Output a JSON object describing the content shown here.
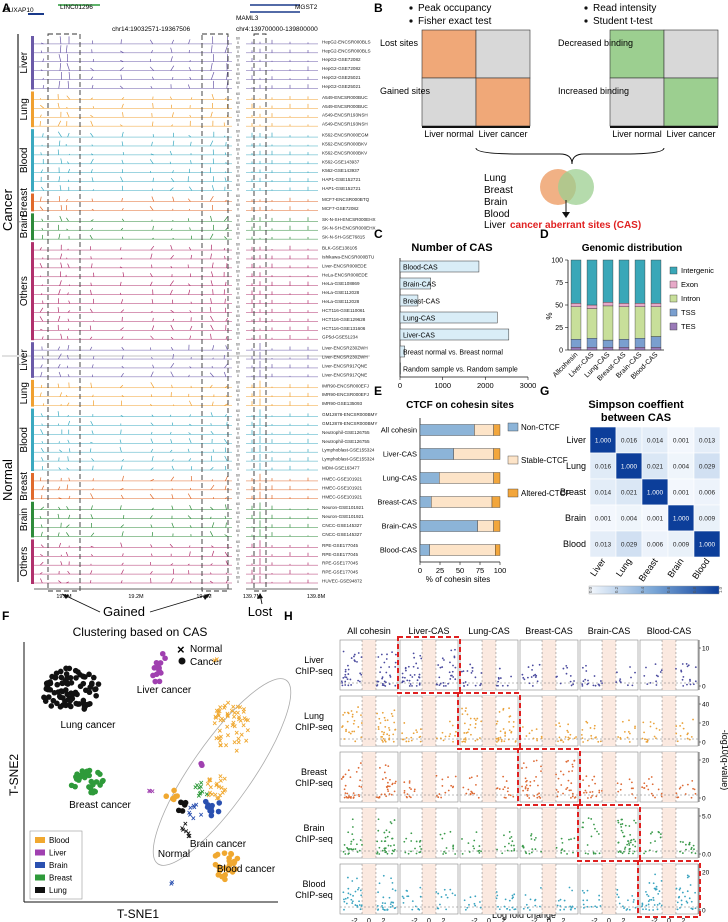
{
  "panel_labels": {
    "a": "A",
    "b": "B",
    "c": "C",
    "d": "D",
    "e": "E",
    "f": "F",
    "g": "G",
    "h": "H"
  },
  "panel_a": {
    "genes_top": [
      "DUXAP10",
      "LINC01296",
      "MGST2",
      "MAML3"
    ],
    "region1": "chr14:19032571-19367506",
    "region2": "chr4:139700000-139800000",
    "group_cancer": "Cancer",
    "group_normal": "Normal",
    "scale_max": "60",
    "scale_min": "0",
    "axis1_ticks": [
      "19.1M",
      "19.2M",
      "19.3M"
    ],
    "axis2_ticks": [
      "139.7M",
      "139.8M"
    ],
    "gained": "Gained",
    "lost": "Lost",
    "tissues": [
      {
        "name": "Liver",
        "color": "#6b5aa8",
        "group": "cancer",
        "tracks": [
          "HepG2-ENCSR000BLS",
          "HepG2-ENCSR000BLS",
          "HepG2-GSE72082",
          "HepG2-GSE72082",
          "HepG2-GSE25021",
          "HepG2-GSE25021"
        ]
      },
      {
        "name": "Lung",
        "color": "#f0a030",
        "group": "cancer",
        "tracks": [
          "A549-ENCSR000BUC",
          "A549-ENCSR000BUC",
          "A549-ENCSR193NSH",
          "A549-ENCSR193NSH"
        ]
      },
      {
        "name": "Blood",
        "color": "#3aa9c0",
        "group": "cancer",
        "tracks": [
          "K562-ENCSR000EGM",
          "K562-ENCSR000BKV",
          "K562-ENCSR000BKV",
          "K562-GSE143937",
          "K562-GSE143937",
          "HAP1-GSE152721",
          "HAP1-GSE152721"
        ]
      },
      {
        "name": "Breast",
        "color": "#e06a2c",
        "group": "cancer",
        "tracks": [
          "MCF7-ENCSR000BTQ",
          "MCF7-GSE72082"
        ]
      },
      {
        "name": "Brain",
        "color": "#2e8b3a",
        "group": "cancer",
        "tracks": [
          "SK-N-SH-ENCSR000EHX",
          "SK-N-SH-ENCSR000EHX",
          "SK-N-SH-GSE76815"
        ]
      },
      {
        "name": "Others",
        "color": "#b0306c",
        "group": "cancer",
        "tracks": [
          "BLK-GSE138105",
          "Ishikawa-ENCSR000BTU",
          "Liver-ENCSR000EDE",
          "HeLa-ENCSR000EDE",
          "HeLa-GSE108869",
          "HeLa-GSE112028",
          "HeLa-GSE112028",
          "HCT116-GSE110061",
          "HCT116-GSE129628",
          "HCT116-GSE131606",
          "GP5d-GSE51234"
        ]
      },
      {
        "name": "Liver",
        "color": "#6b5aa8",
        "group": "normal",
        "tracks": [
          "Liver-ENCSR230ZWH",
          "Liver-ENCSR230ZWH",
          "Liver-ENCSR917QNE",
          "Liver-ENCSR917QNE"
        ]
      },
      {
        "name": "Lung",
        "color": "#f0a030",
        "group": "normal",
        "tracks": [
          "IMR90-ENCSR000EFJ",
          "IMR90-ENCSR000EFJ",
          "IMR90-GSE135093"
        ]
      },
      {
        "name": "Blood",
        "color": "#3aa9c0",
        "group": "normal",
        "tracks": [
          "GM12878-ENCSR000BMY",
          "GM12878-ENCSR000BMY",
          "Neutrophil-GSE126755",
          "Neutrophil-GSE126755",
          "Lymphoblast-GSE155324",
          "Lymphoblast-GSE155324",
          "MDM-GSE163477"
        ]
      },
      {
        "name": "Breast",
        "color": "#e06a2c",
        "group": "normal",
        "tracks": [
          "HMEC-GSE101921",
          "HMEC-GSE101921",
          "HMEC-GSE101921"
        ]
      },
      {
        "name": "Brain",
        "color": "#2e8b3a",
        "group": "normal",
        "tracks": [
          "Neuron-GSE101921",
          "Neuron-GSE101921",
          "CNCC-GSE145327",
          "CNCC-GSE145327"
        ]
      },
      {
        "name": "Others",
        "color": "#b0306c",
        "group": "normal",
        "tracks": [
          "RPE-GSE177045",
          "RPE-GSE177045",
          "RPE-GSE177045",
          "RPE-GSE177045",
          "HUVEC-GSE94872"
        ]
      }
    ]
  },
  "panel_b": {
    "left_bullets": [
      "Peak occupancy",
      "Fisher exact test"
    ],
    "right_bullets": [
      "Read intensity",
      "Student t-test"
    ],
    "left_rows": [
      "Lost sites",
      "Gained sites"
    ],
    "right_rows": [
      "Decreased binding",
      "Increased binding"
    ],
    "cols": [
      "Liver normal",
      "Liver cancer"
    ],
    "tissue_list": [
      "Lung",
      "Breast",
      "Brain",
      "Blood",
      "Liver"
    ],
    "cas_label": "cancer aberrant sites (CAS)",
    "colors": {
      "orange": "#f0a878",
      "green": "#9ccf90",
      "grey": "#d8d8d8"
    }
  },
  "panel_c": {
    "title": "Number of CAS"
  },
  "panel_d": {
    "title": "Genomic distribution",
    "ylabel": "%",
    "legend": [
      "Intergenic",
      "Exon",
      "Intron",
      "TSS",
      "TES"
    ],
    "colors": [
      "#3aa7b8",
      "#e7a9c8",
      "#c8df9a",
      "#7a9fcf",
      "#9a7ab8"
    ]
  },
  "panel_e": {
    "title": "CTCF on cohesin sites",
    "xlabel": "% of cohesin sites",
    "legend": [
      "Non-CTCF",
      "Stable-CTCF",
      "Altered-CTCF"
    ],
    "colors": [
      "#8cb4d8",
      "#fde4c8",
      "#f2a63c"
    ]
  },
  "panel_f": {
    "title": "Clustering based on CAS",
    "xlabel": "T-SNE1",
    "ylabel": "T-SNE2",
    "key_normal": "Normal",
    "key_cancer": "Cancer",
    "cluster_labels": [
      "Lung cancer",
      "Liver cancer",
      "Breast cancer",
      "Normal",
      "Brain cancer",
      "Blood cancer"
    ],
    "legend": [
      {
        "name": "Blood",
        "color": "#f0a830"
      },
      {
        "name": "Liver",
        "color": "#a040b0"
      },
      {
        "name": "Brain",
        "color": "#2a50b0"
      },
      {
        "name": "Breast",
        "color": "#2e9a3a"
      },
      {
        "name": "Lung",
        "color": "#111111"
      }
    ]
  },
  "panel_g": {
    "title_line1": "Simpson coeffient",
    "title_line2": "between CAS",
    "colorbar_ticks": [
      "0.0",
      "0.2",
      "0.4",
      "0.6",
      "0.8",
      "1.0"
    ]
  },
  "panel_h": {
    "cols": [
      "All cohesin",
      "Liver-CAS",
      "Lung-CAS",
      "Breast-CAS",
      "Brain-CAS",
      "Blood-CAS"
    ],
    "rows": [
      {
        "line1": "Liver",
        "line2": "ChIP-seq",
        "color": "#4a4a9e",
        "ticks": [
          "10",
          "0"
        ]
      },
      {
        "line1": "Lung",
        "line2": "ChIP-seq",
        "color": "#eaa23a",
        "ticks": [
          "40",
          "20",
          "0"
        ]
      },
      {
        "line1": "Breast",
        "line2": "ChIP-seq",
        "color": "#de6a34",
        "ticks": [
          "20",
          "0"
        ]
      },
      {
        "line1": "Brain",
        "line2": "ChIP-seq",
        "color": "#3a9a4a",
        "ticks": [
          "5.0",
          "0.0"
        ]
      },
      {
        "line1": "Blood",
        "line2": "ChIP-seq",
        "color": "#3aa4c0",
        "ticks": [
          "20",
          "0"
        ]
      }
    ],
    "xticks": [
      "-2",
      "0",
      "2"
    ],
    "xlabel": "Log fold change",
    "ylabel": "-log10(q-value)"
  },
  "chart_data": [
    {
      "type": "bar",
      "panel": "C",
      "title": "Number of CAS",
      "orientation": "horizontal",
      "categories": [
        "Blood-CAS",
        "Brain-CAS",
        "Breast-CAS",
        "Lung-CAS",
        "Liver-CAS",
        "Breast normal vs. Breast normal",
        "Random sample vs. Random sample"
      ],
      "values": [
        1850,
        720,
        420,
        2280,
        2550,
        110,
        15
      ],
      "xticks": [
        "0",
        "1000",
        "2000",
        "3000"
      ],
      "xlim": [
        0,
        3000
      ]
    },
    {
      "type": "bar",
      "panel": "D",
      "stacked": true,
      "title": "Genomic distribution",
      "ylabel": "%",
      "categories": [
        "Allcohesin",
        "Liver-CAS",
        "Lung-CAS",
        "Breast-CAS",
        "Brain-CAS",
        "Blood-CAS"
      ],
      "yticks": [
        "0",
        "25",
        "50",
        "75",
        "100"
      ],
      "ylim": [
        0,
        100
      ],
      "series": [
        {
          "name": "TES",
          "values": [
            3,
            3,
            3,
            3,
            3,
            3
          ]
        },
        {
          "name": "TSS",
          "values": [
            9,
            10,
            8,
            9,
            10,
            12
          ]
        },
        {
          "name": "Intron",
          "values": [
            36,
            33,
            38,
            36,
            35,
            33
          ]
        },
        {
          "name": "Exon",
          "values": [
            4,
            4,
            4,
            4,
            4,
            4
          ]
        },
        {
          "name": "Intergenic",
          "values": [
            48,
            50,
            47,
            48,
            48,
            48
          ]
        }
      ]
    },
    {
      "type": "bar",
      "panel": "E",
      "stacked": true,
      "orientation": "horizontal",
      "title": "CTCF on cohesin sites",
      "xlabel": "% of cohesin sites",
      "categories": [
        "All cohesin",
        "Liver-CAS",
        "Lung-CAS",
        "Breast-CAS",
        "Brain-CAS",
        "Blood-CAS"
      ],
      "xticks": [
        "0",
        "25",
        "50",
        "75",
        "100"
      ],
      "xlim": [
        0,
        100
      ],
      "series": [
        {
          "name": "Non-CTCF",
          "values": [
            68,
            42,
            24,
            14,
            72,
            12
          ]
        },
        {
          "name": "Stable-CTCF",
          "values": [
            24,
            50,
            68,
            76,
            20,
            82
          ]
        },
        {
          "name": "Altered-CTCF",
          "values": [
            8,
            8,
            8,
            10,
            8,
            6
          ]
        }
      ]
    },
    {
      "type": "heatmap",
      "panel": "G",
      "title": "Simpson coeffient between CAS",
      "rows": [
        "Liver",
        "Lung",
        "Breast",
        "Brain",
        "Blood"
      ],
      "cols": [
        "Liver",
        "Lung",
        "Breast",
        "Brain",
        "Blood"
      ],
      "values": [
        [
          "1.000",
          "0.016",
          "0.014",
          "0.001",
          "0.013"
        ],
        [
          "0.016",
          "1.000",
          "0.021",
          "0.004",
          "0.029"
        ],
        [
          "0.014",
          "0.021",
          "1.000",
          "0.001",
          "0.006"
        ],
        [
          "0.001",
          "0.004",
          "0.001",
          "1.000",
          "0.009"
        ],
        [
          "0.013",
          "0.029",
          "0.006",
          "0.009",
          "1.000"
        ]
      ],
      "crange": [
        0,
        1
      ]
    }
  ]
}
